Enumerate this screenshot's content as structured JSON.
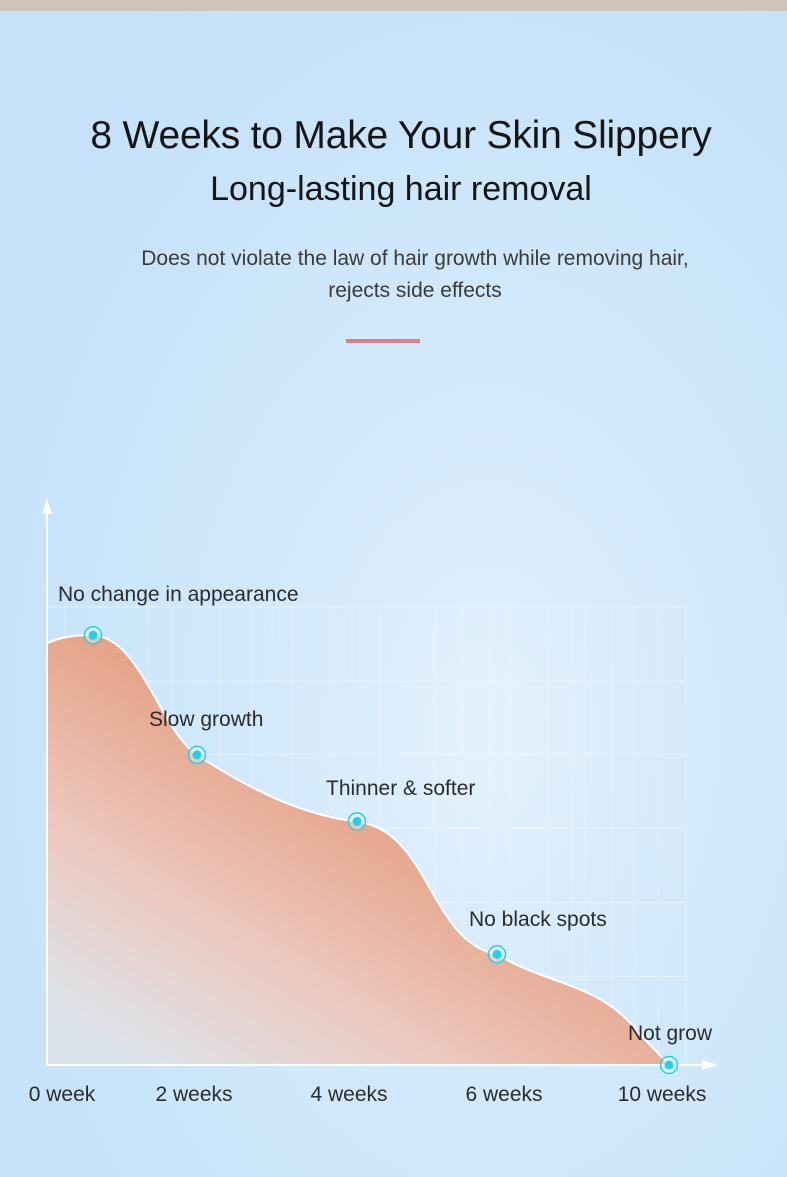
{
  "header": {
    "title": "8 Weeks to Make Your Skin Slippery",
    "subtitle": "Long-lasting hair removal",
    "description_line1": "Does not violate the law of hair growth while removing hair,",
    "description_line2": "rejects side effects"
  },
  "colors": {
    "accent_divider": "#e07f82",
    "area_fill": "#e29a7d",
    "marker": "#1fd3e6",
    "axis": "#ffffff"
  },
  "chart_data": {
    "type": "area",
    "title": "",
    "xlabel": "",
    "ylabel": "",
    "x_ticks": [
      "0 week",
      "2 weeks",
      "4 weeks",
      "6 weeks",
      "10 weeks"
    ],
    "points": [
      {
        "label": "No change in appearance",
        "value": 0.97
      },
      {
        "label": "Slow growth",
        "value": 0.7
      },
      {
        "label": "Thinner & softer",
        "value": 0.55
      },
      {
        "label": "No black spots",
        "value": 0.25
      },
      {
        "label": "Not grow",
        "value": 0.0
      }
    ],
    "ylim": [
      0,
      1
    ],
    "grid": true,
    "legend": "none"
  }
}
